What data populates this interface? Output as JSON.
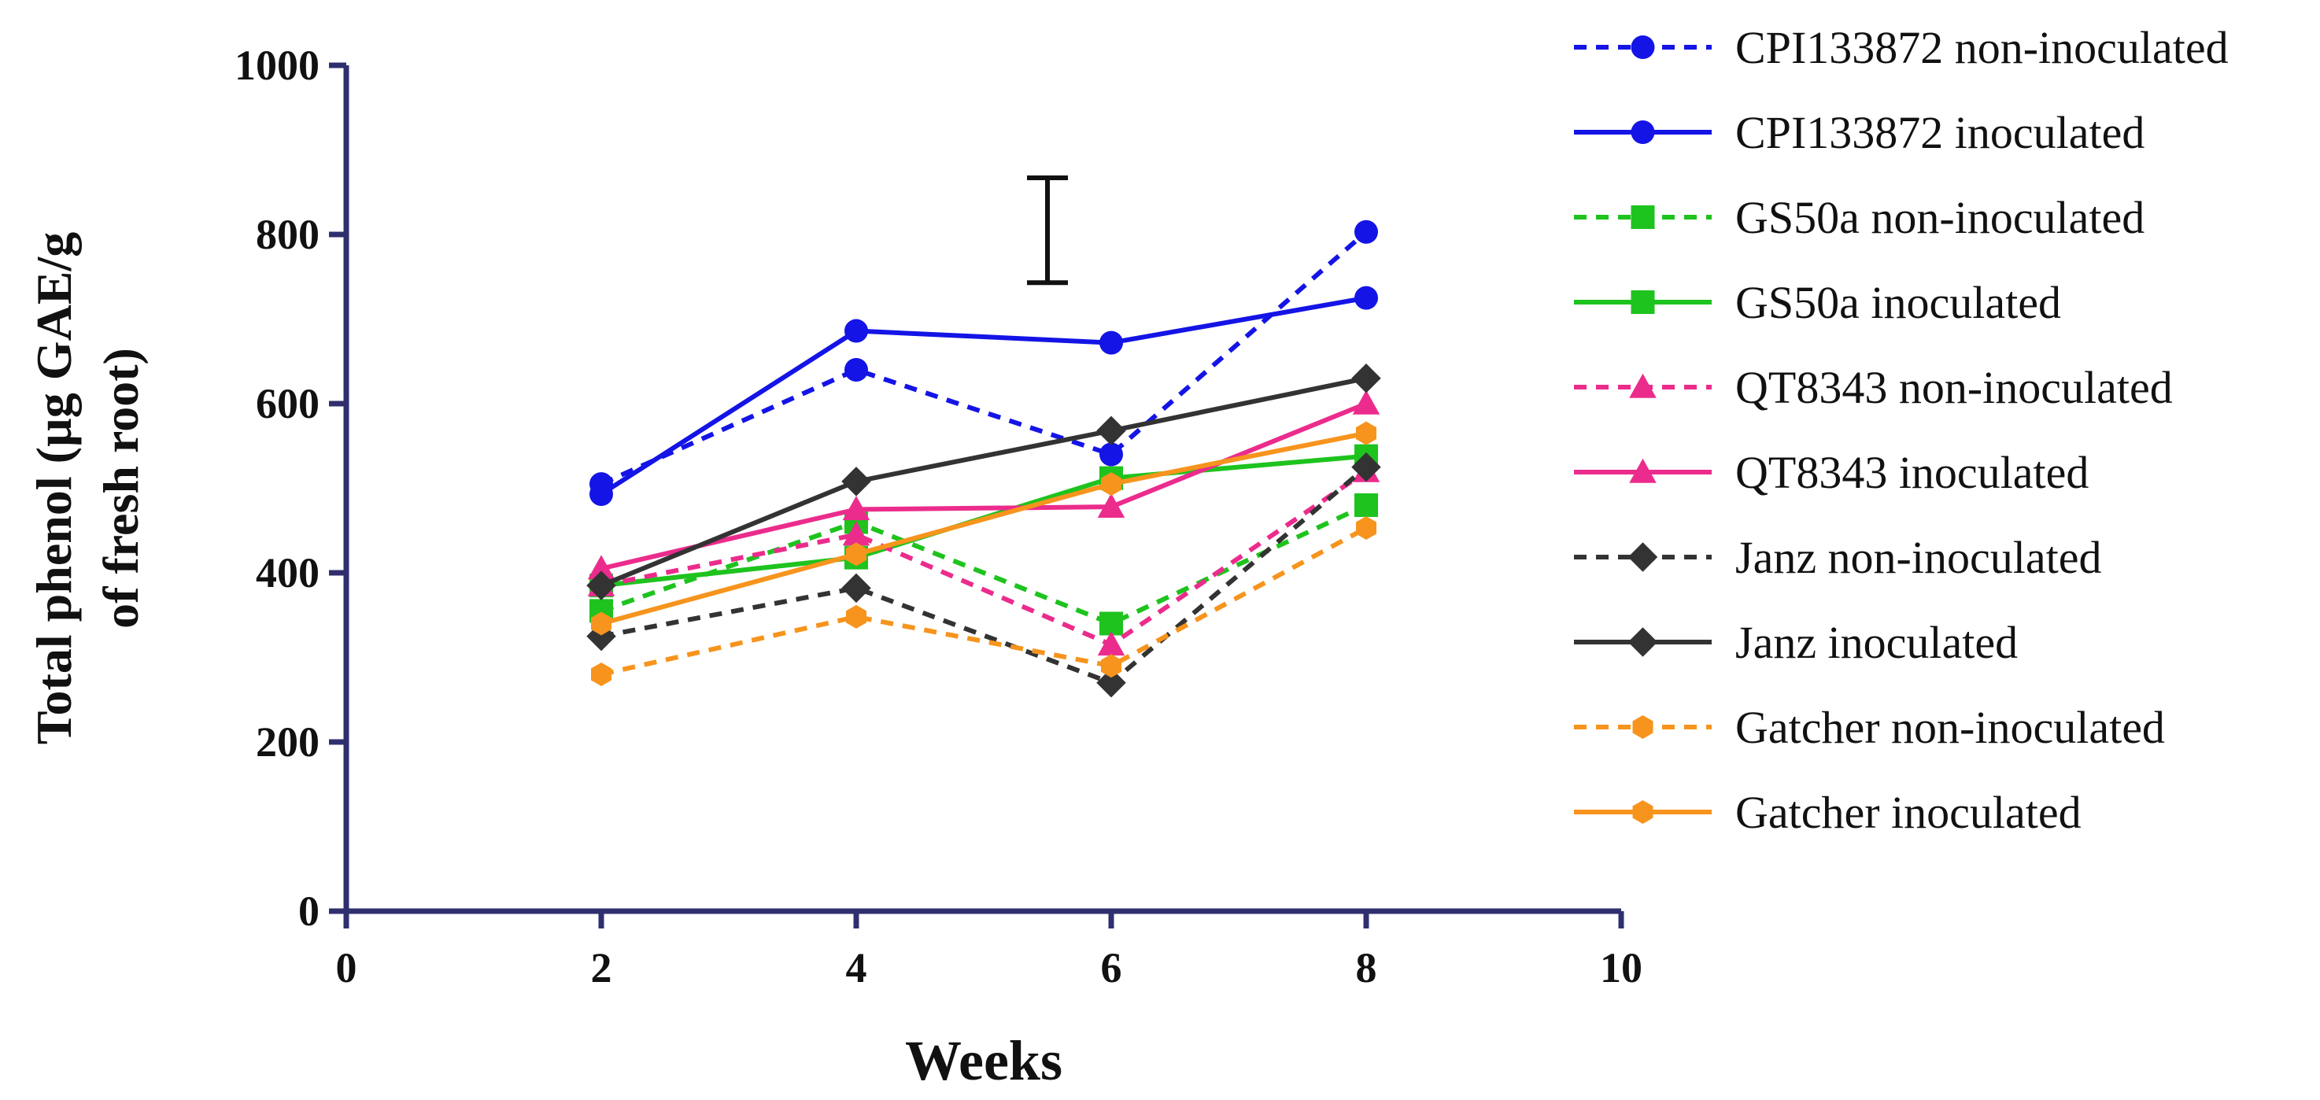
{
  "chart_data": {
    "type": "line",
    "xlabel": "Weeks",
    "ylabel": "Total phenol (µg GAE/g of fresh root)",
    "ylabel_lines": [
      "Total phenol (µg GAE/g",
      "of fresh root)"
    ],
    "xlim": [
      0,
      10
    ],
    "ylim": [
      0,
      1000
    ],
    "xticks": [
      0,
      2,
      4,
      6,
      8,
      10
    ],
    "yticks": [
      0,
      200,
      400,
      600,
      800,
      1000
    ],
    "grid": false,
    "legend_position": "right",
    "x": [
      2,
      4,
      6,
      8
    ],
    "error_bar": {
      "x": 5.5,
      "low": 743,
      "high": 867
    },
    "series": [
      {
        "name": "CPI133872 non-inoculated",
        "values": [
          505,
          640,
          540,
          803
        ],
        "color": "#1414e6",
        "dashed": true,
        "marker": "circle"
      },
      {
        "name": "CPI133872 inoculated",
        "values": [
          493,
          686,
          672,
          725
        ],
        "color": "#1414e6",
        "dashed": false,
        "marker": "circle"
      },
      {
        "name": "GS50a non-inoculated",
        "values": [
          355,
          460,
          340,
          480
        ],
        "color": "#1ec31e",
        "dashed": true,
        "marker": "square"
      },
      {
        "name": "GS50a inoculated",
        "values": [
          385,
          418,
          512,
          538
        ],
        "color": "#1ec31e",
        "dashed": false,
        "marker": "square"
      },
      {
        "name": "QT8343 non-inoculated",
        "values": [
          385,
          445,
          315,
          520
        ],
        "color": "#ec2c8c",
        "dashed": true,
        "marker": "triangle"
      },
      {
        "name": "QT8343 inoculated",
        "values": [
          405,
          475,
          478,
          600
        ],
        "color": "#ec2c8c",
        "dashed": false,
        "marker": "triangle"
      },
      {
        "name": "Janz non-inoculated",
        "values": [
          325,
          382,
          270,
          525
        ],
        "color": "#333333",
        "dashed": true,
        "marker": "diamond"
      },
      {
        "name": "Janz inoculated",
        "values": [
          385,
          508,
          568,
          630
        ],
        "color": "#333333",
        "dashed": false,
        "marker": "diamond"
      },
      {
        "name": "Gatcher non-inoculated",
        "values": [
          280,
          348,
          290,
          453
        ],
        "color": "#f7941d",
        "dashed": true,
        "marker": "hexagon"
      },
      {
        "name": "Gatcher inoculated",
        "values": [
          340,
          422,
          505,
          565
        ],
        "color": "#f7941d",
        "dashed": false,
        "marker": "hexagon"
      }
    ]
  }
}
